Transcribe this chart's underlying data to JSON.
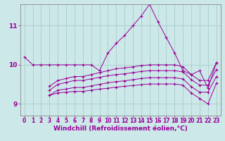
{
  "background_color": "#cce8e8",
  "grid_color": "#aacccc",
  "line_color": "#990099",
  "marker": "+",
  "xlabel": "Windchill (Refroidissement éolien,°C)",
  "xlabel_fontsize": 6.5,
  "xtick_fontsize": 5.5,
  "ytick_fontsize": 6.5,
  "xlim": [
    -0.5,
    23.5
  ],
  "ylim": [
    8.7,
    11.55
  ],
  "yticks": [
    9,
    10,
    11
  ],
  "xticks": [
    0,
    1,
    2,
    3,
    4,
    5,
    6,
    7,
    8,
    9,
    10,
    11,
    12,
    13,
    14,
    15,
    16,
    17,
    18,
    19,
    20,
    21,
    22,
    23
  ],
  "series": [
    {
      "x": [
        0,
        1,
        2,
        3,
        4,
        5,
        6,
        7,
        8,
        9,
        10,
        11,
        12,
        13,
        14,
        15,
        16,
        17,
        18,
        19,
        20,
        21,
        22,
        23
      ],
      "y": [
        10.2,
        10.0,
        10.0,
        10.0,
        10.0,
        10.0,
        10.0,
        10.0,
        10.0,
        9.85,
        10.3,
        10.55,
        10.75,
        11.0,
        11.25,
        11.55,
        11.1,
        10.7,
        10.3,
        9.85,
        9.75,
        9.85,
        9.4,
        10.05
      ]
    },
    {
      "x": [
        3,
        4,
        5,
        6,
        7,
        8,
        9,
        10,
        11,
        12,
        13,
        14,
        15,
        16,
        17,
        18,
        19,
        20,
        21,
        22,
        23
      ],
      "y": [
        9.45,
        9.6,
        9.65,
        9.7,
        9.7,
        9.75,
        9.8,
        9.85,
        9.9,
        9.92,
        9.95,
        9.98,
        10.0,
        10.0,
        10.0,
        10.0,
        9.95,
        9.75,
        9.6,
        9.6,
        10.05
      ]
    },
    {
      "x": [
        3,
        4,
        5,
        6,
        7,
        8,
        9,
        10,
        11,
        12,
        13,
        14,
        15,
        16,
        17,
        18,
        19,
        20,
        21,
        22,
        23
      ],
      "y": [
        9.35,
        9.5,
        9.55,
        9.6,
        9.6,
        9.64,
        9.68,
        9.72,
        9.75,
        9.77,
        9.8,
        9.83,
        9.85,
        9.85,
        9.85,
        9.85,
        9.82,
        9.62,
        9.48,
        9.48,
        9.88
      ]
    },
    {
      "x": [
        3,
        4,
        5,
        6,
        7,
        8,
        9,
        10,
        11,
        12,
        13,
        14,
        15,
        16,
        17,
        18,
        19,
        20,
        21,
        22,
        23
      ],
      "y": [
        9.22,
        9.35,
        9.38,
        9.42,
        9.42,
        9.46,
        9.5,
        9.54,
        9.57,
        9.59,
        9.62,
        9.65,
        9.67,
        9.67,
        9.67,
        9.67,
        9.64,
        9.44,
        9.3,
        9.3,
        9.7
      ]
    },
    {
      "x": [
        3,
        4,
        5,
        6,
        7,
        8,
        9,
        10,
        11,
        12,
        13,
        14,
        15,
        16,
        17,
        18,
        19,
        20,
        21,
        22,
        23
      ],
      "y": [
        9.22,
        9.28,
        9.3,
        9.32,
        9.32,
        9.35,
        9.38,
        9.4,
        9.43,
        9.45,
        9.47,
        9.49,
        9.51,
        9.51,
        9.51,
        9.51,
        9.48,
        9.28,
        9.14,
        9.0,
        9.53
      ]
    }
  ]
}
